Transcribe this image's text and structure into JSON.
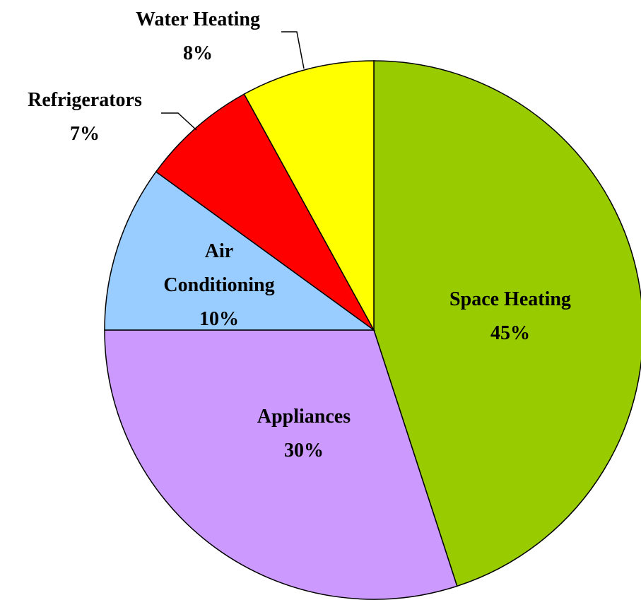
{
  "chart_data": {
    "type": "pie",
    "categories": [
      "Space Heating",
      "Appliances",
      "Air Conditioning",
      "Refrigerators",
      "Water Heating"
    ],
    "values": [
      45,
      30,
      10,
      7,
      8
    ],
    "value_labels": [
      "45%",
      "30%",
      "10%",
      "7%",
      "8%"
    ],
    "colors": [
      "#99cc00",
      "#cc99ff",
      "#99ccff",
      "#ff0000",
      "#ffff00"
    ]
  }
}
